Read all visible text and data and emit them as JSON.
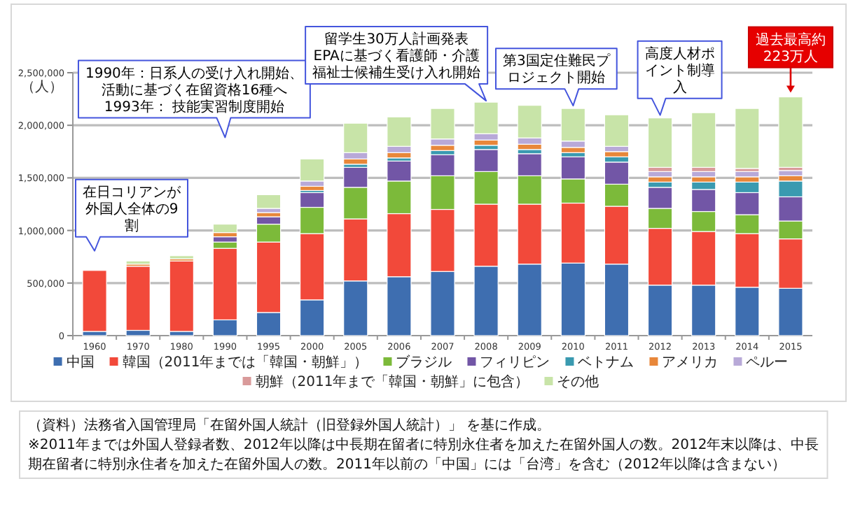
{
  "chart_data": {
    "type": "bar",
    "stacked": true,
    "ylabel": "（人）",
    "legend": "bottom",
    "grid": "y",
    "categories": [
      "1960",
      "1970",
      "1980",
      "1990",
      "1995",
      "2000",
      "2005",
      "2006",
      "2007",
      "2008",
      "2009",
      "2010",
      "2011",
      "2012",
      "2013",
      "2014",
      "2015"
    ],
    "ylim": [
      0,
      2500000
    ],
    "yticks": [
      {
        "value": 0,
        "label": "0"
      },
      {
        "value": 500000,
        "label": "500,000"
      },
      {
        "value": 1000000,
        "label": "1,000,000"
      },
      {
        "value": 1500000,
        "label": "1,500,000"
      },
      {
        "value": 2000000,
        "label": "2,000,000"
      },
      {
        "value": 2500000,
        "label": "2,500,000"
      }
    ],
    "series": [
      {
        "name": "中国",
        "color": "#3e6eb0",
        "values": [
          40000,
          50000,
          40000,
          150000,
          220000,
          340000,
          520000,
          560000,
          610000,
          660000,
          680000,
          690000,
          680000,
          480000,
          480000,
          460000,
          450000
        ]
      },
      {
        "name": "韓国（2011年までは「韓国・朝鮮」）",
        "color": "#f2493a",
        "values": [
          580000,
          610000,
          670000,
          680000,
          670000,
          630000,
          590000,
          600000,
          590000,
          590000,
          570000,
          570000,
          550000,
          540000,
          510000,
          510000,
          470000
        ]
      },
      {
        "name": "ブラジル",
        "color": "#7cba3a",
        "values": [
          null,
          null,
          null,
          60000,
          170000,
          250000,
          300000,
          310000,
          320000,
          310000,
          270000,
          230000,
          210000,
          190000,
          190000,
          180000,
          170000
        ]
      },
      {
        "name": "フィリピン",
        "color": "#7256a6",
        "values": [
          null,
          null,
          null,
          50000,
          70000,
          140000,
          190000,
          190000,
          200000,
          210000,
          210000,
          210000,
          210000,
          200000,
          210000,
          210000,
          230000
        ]
      },
      {
        "name": "ベトナム",
        "color": "#3a9ab0",
        "values": [
          null,
          null,
          null,
          null,
          null,
          20000,
          30000,
          30000,
          40000,
          40000,
          40000,
          40000,
          50000,
          50000,
          70000,
          100000,
          150000
        ]
      },
      {
        "name": "アメリカ",
        "color": "#e8873a",
        "values": [
          null,
          20000,
          20000,
          40000,
          40000,
          40000,
          50000,
          50000,
          50000,
          50000,
          50000,
          50000,
          50000,
          50000,
          50000,
          50000,
          50000
        ]
      },
      {
        "name": "ペルー",
        "color": "#b8a9d8",
        "values": [
          null,
          null,
          null,
          null,
          40000,
          50000,
          60000,
          60000,
          60000,
          60000,
          60000,
          60000,
          50000,
          50000,
          50000,
          50000,
          50000
        ]
      },
      {
        "name": "朝鮮（2011年まで「韓国・朝鮮」に包含）",
        "color": "#d99a9a",
        "values": [
          null,
          null,
          null,
          null,
          null,
          null,
          null,
          null,
          null,
          null,
          null,
          null,
          null,
          40000,
          40000,
          30000,
          30000
        ]
      },
      {
        "name": "その他",
        "color": "#c8e4a8",
        "values": [
          null,
          30000,
          30000,
          80000,
          130000,
          210000,
          280000,
          280000,
          290000,
          300000,
          310000,
          310000,
          300000,
          470000,
          520000,
          570000,
          670000
        ]
      }
    ],
    "annotations": [
      "在日コリアンが外国人全体の9割",
      "1990年：日系人の受け入れ開始、活動に基づく在留資格16種へ",
      "1993年： 技能実習制度開始",
      "留学生30万人計画発表",
      "EPAに基づく看護師・介護福祉士候補生受け入れ開始",
      "第3国定住難民プロジェクト開始",
      "高度人材ポイント制導入",
      "過去最高約223万人",
      "（資料）法務省入国管理局「在留外国人統計（旧登録外国人統計）」 を基に作成。",
      "※2011年までは外国人登録者数、2012年以降は中長期在留者に特別永住者を加えた在留外国人の数。2012年末以降は、中長期在留者に特別永住者を加えた在留外国人の数。2011年以前の「中国」には「台湾」を含む（2012年以降は含まない）"
    ]
  }
}
